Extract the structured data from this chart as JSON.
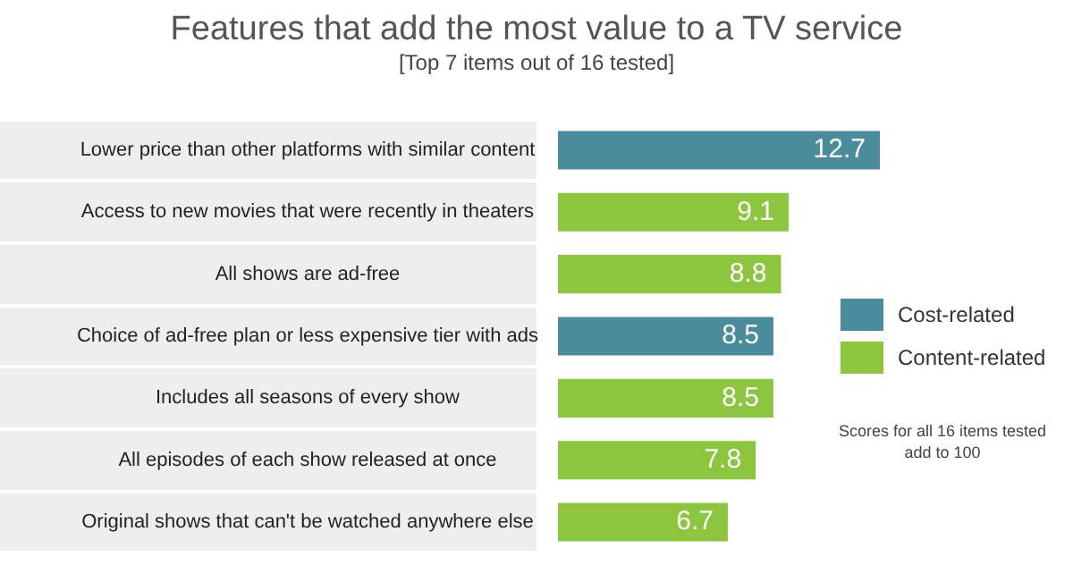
{
  "chart_data": {
    "type": "bar",
    "orientation": "horizontal",
    "stacked": true,
    "title": "Features that add the most value to a TV service",
    "subtitle": "[Top 7 items out of 16 tested]",
    "categories": [
      "Lower price than other platforms with similar content",
      "Access to new movies that were recently in theaters",
      "All shows are ad-free",
      "Choice of ad-free plan or less expensive tier with ads",
      "Includes all seasons of every show",
      "All episodes of each show released at once",
      "Original shows that can't be watched anywhere else"
    ],
    "series": [
      {
        "name": "Cost-related",
        "color": "#4a8c9b",
        "values": [
          12.7,
          null,
          null,
          8.5,
          null,
          null,
          null
        ]
      },
      {
        "name": "Content-related",
        "color": "#8cc63e",
        "values": [
          null,
          9.1,
          8.8,
          null,
          8.5,
          7.8,
          6.7
        ]
      }
    ],
    "data_labels": true,
    "legend": "right",
    "grid": false,
    "annotations": [
      "Scores for all 16 items tested add to 100"
    ]
  }
}
